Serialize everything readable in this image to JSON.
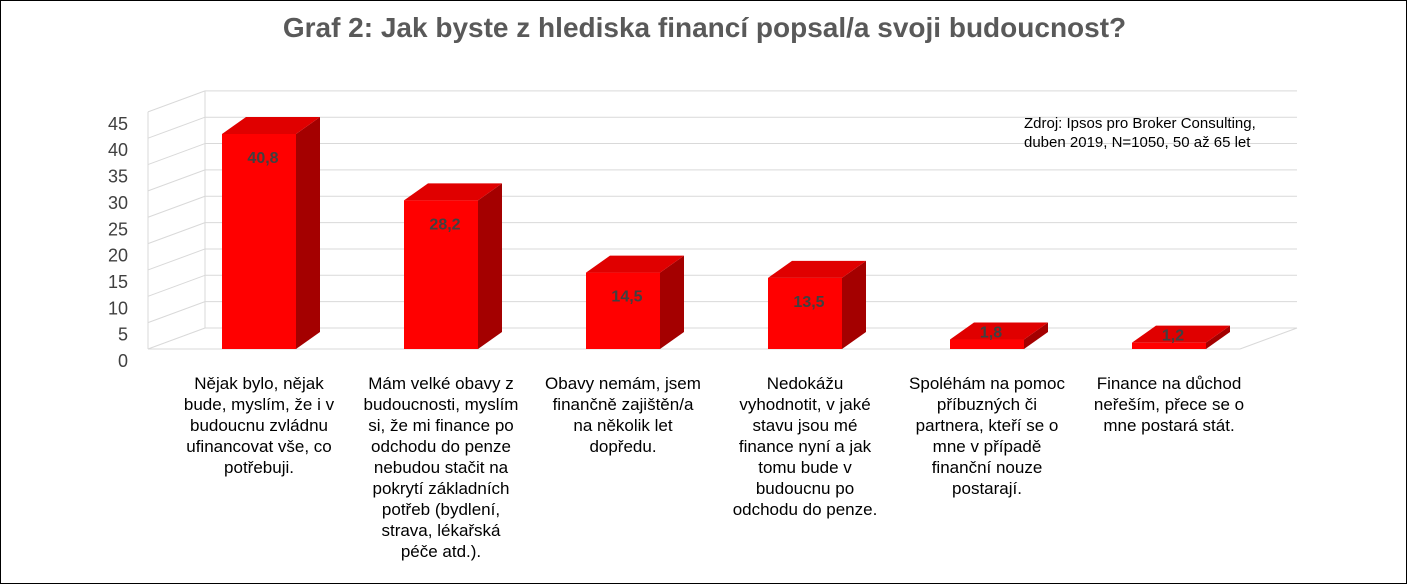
{
  "chart_data": {
    "type": "bar",
    "title": "Graf 2: Jak byste z hlediska financí popsal/a svoji budoucnost?",
    "categories": [
      "Nějak bylo, nějak bude, myslím, že i v budoucnu zvládnu ufinancovat vše, co potřebuji.",
      "Mám velké obavy z budoucnosti, myslím si, že mi finance po odchodu do penze nebudou stačit na pokrytí základních potřeb (bydlení, strava, lékařská péče atd.).",
      "Obavy nemám, jsem finančně zajištěn/a na několik let dopředu.",
      "Nedokážu vyhodnotit, v jaké stavu jsou mé finance nyní a jak tomu bude v budoucnu po odchodu do penze.",
      "Spoléhám na pomoc příbuzných či partnera, kteří se o mne v případě finanční nouze postarají.",
      "Finance na důchod neřeším, přece se o mne postará stát."
    ],
    "values": [
      40.8,
      28.2,
      14.5,
      13.5,
      1.8,
      1.2
    ],
    "value_labels": [
      "40,8",
      "28,2",
      "14,5",
      "13,5",
      "1,8",
      "1,2"
    ],
    "ylim": [
      0,
      45
    ],
    "yticks": [
      0,
      5,
      10,
      15,
      20,
      25,
      30,
      35,
      40,
      45
    ],
    "ytick_labels": [
      "0",
      "5",
      "10",
      "15",
      "20",
      "25",
      "30",
      "35",
      "40",
      "45"
    ],
    "grid": true,
    "style": "3d-column",
    "colors": {
      "front": "#ff0000",
      "side": "#a40000",
      "top": "#e00000",
      "grid": "#d9d9d9"
    },
    "annotation": [
      "Zdroj: Ipsos pro Broker Consulting,",
      "duben 2019, N=1050, 50 až 65 let"
    ]
  }
}
